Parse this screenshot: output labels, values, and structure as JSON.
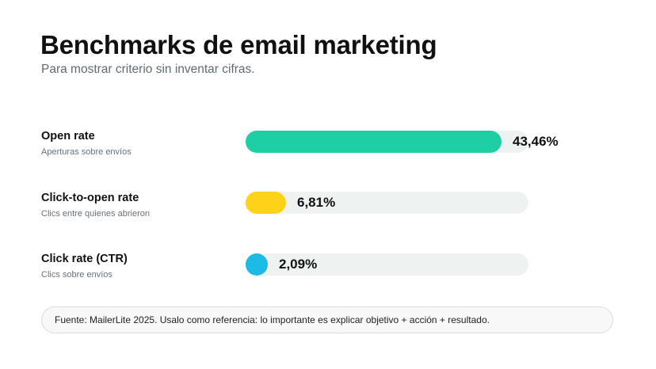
{
  "title": "Benchmarks de email marketing",
  "subtitle": "Para mostrar criterio sin inventar cifras.",
  "chart_data": {
    "type": "bar",
    "orientation": "horizontal",
    "categories": [
      "Open rate",
      "Click-to-open rate",
      "Click rate (CTR)"
    ],
    "descriptions": [
      "Aperturas sobre envíos",
      "Clics entre quienes abrieron",
      "Clics sobre envíos"
    ],
    "values": [
      43.46,
      6.81,
      2.09
    ],
    "value_labels": [
      "43,46%",
      "6,81%",
      "2,09%"
    ],
    "colors": [
      "#1ecfa6",
      "#ffd21a",
      "#1bbbe6"
    ],
    "track_color": "#eef2f1",
    "xlim": [
      0,
      48
    ],
    "grid": false,
    "legend": "none"
  },
  "footer": {
    "text": "Fuente: MailerLite 2025. Usalo como referencia: lo importante es explicar objetivo + acción + resultado."
  }
}
